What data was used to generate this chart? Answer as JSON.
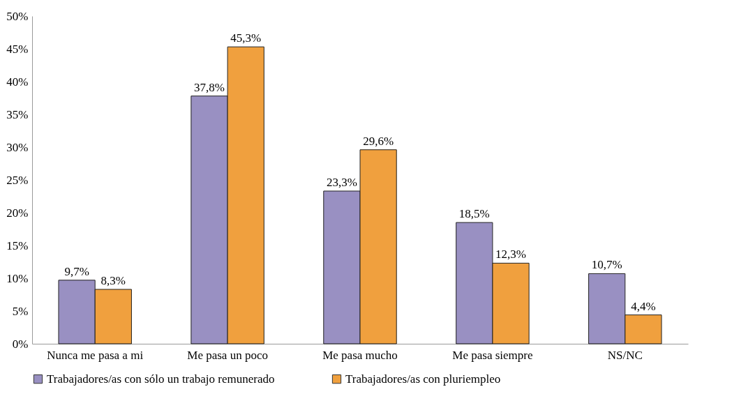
{
  "chart_data": {
    "type": "bar",
    "categories": [
      "Nunca me pasa a mi",
      "Me pasa un poco",
      "Me pasa mucho",
      "Me pasa siempre",
      "NS/NC"
    ],
    "series": [
      {
        "name": "Trabajadores/as con sólo un trabajo remunerado",
        "color": "#9990c2",
        "values": [
          9.7,
          37.8,
          23.3,
          18.5,
          10.7
        ],
        "value_labels": [
          "9,7%",
          "37,8%",
          "23,3%",
          "18,5%",
          "10,7%"
        ]
      },
      {
        "name": "Trabajadores/as con pluriempleo",
        "color": "#f0a03e",
        "values": [
          8.3,
          45.3,
          29.6,
          12.3,
          4.4
        ],
        "value_labels": [
          "8,3%",
          "45,3%",
          "29,6%",
          "12,3%",
          "4,4%"
        ]
      }
    ],
    "ylim": [
      0,
      50
    ],
    "yticks": [
      {
        "value": 0,
        "label": "0%"
      },
      {
        "value": 5,
        "label": "5%"
      },
      {
        "value": 10,
        "label": "10%"
      },
      {
        "value": 15,
        "label": "15%"
      },
      {
        "value": 20,
        "label": "20%"
      },
      {
        "value": 25,
        "label": "25%"
      },
      {
        "value": 30,
        "label": "30%"
      },
      {
        "value": 35,
        "label": "35%"
      },
      {
        "value": 40,
        "label": "40%"
      },
      {
        "value": 45,
        "label": "45%"
      },
      {
        "value": 50,
        "label": "50%"
      }
    ],
    "grid": false,
    "legend": "bottom"
  }
}
